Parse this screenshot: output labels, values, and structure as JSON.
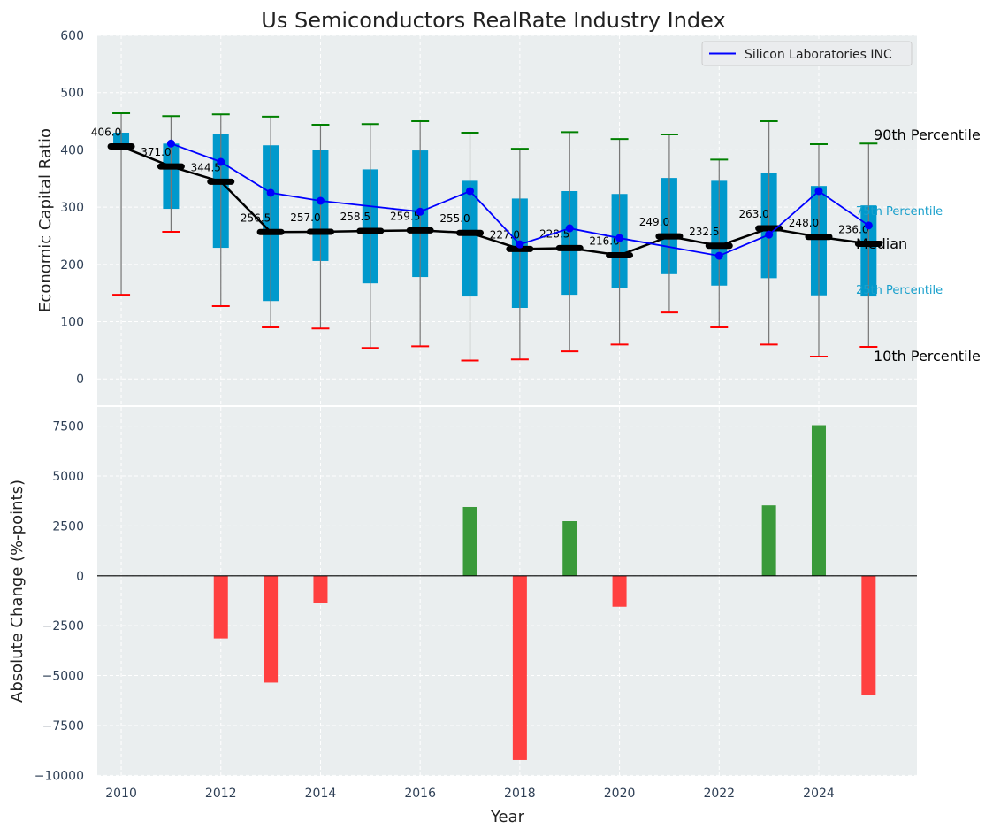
{
  "chart_data": [
    {
      "type": "box-percentile",
      "title": "Us Semiconductors RealRate Industry Index",
      "ylabel": "Economic Capital Ratio",
      "ylim": [
        -46,
        600
      ],
      "yticks": [
        0,
        100,
        200,
        300,
        400,
        500,
        600
      ],
      "grid": true,
      "legend": {
        "placement": "top-right",
        "entries": [
          "Silicon Laboratories INC"
        ]
      },
      "years": [
        2010,
        2011,
        2012,
        2013,
        2014,
        2015,
        2016,
        2017,
        2018,
        2019,
        2020,
        2021,
        2022,
        2023,
        2024,
        2025
      ],
      "p90": [
        464,
        459,
        462,
        458,
        444,
        445,
        450,
        430,
        402,
        431,
        419,
        427,
        383,
        450,
        410,
        411
      ],
      "p75": [
        430,
        411,
        427,
        408,
        400,
        366,
        399,
        346,
        315,
        328,
        323,
        351,
        346,
        359,
        337,
        303
      ],
      "median": [
        406.0,
        371.0,
        344.5,
        256.5,
        257.0,
        258.5,
        259.5,
        255.0,
        227.0,
        228.5,
        216.0,
        249.0,
        232.5,
        263.0,
        248.0,
        236.0
      ],
      "median_labels": [
        "406.0",
        "371.0",
        "344.5",
        "256.5",
        "257.0",
        "258.5",
        "259.5",
        "255.0",
        "227.0",
        "228.5",
        "216.0",
        "249.0",
        "232.5",
        "263.0",
        "248.0",
        "236.0"
      ],
      "p25": [
        406,
        297,
        229,
        136,
        206,
        167,
        178,
        144,
        124,
        147,
        158,
        183,
        163,
        176,
        146,
        144
      ],
      "p10": [
        147,
        257,
        127,
        90,
        88,
        54,
        57,
        32,
        34,
        48,
        60,
        116,
        90,
        60,
        39,
        56
      ],
      "series": [
        {
          "name": "Silicon Laboratories INC",
          "color": "#0000ff",
          "values": [
            null,
            411,
            379,
            325,
            311,
            null,
            292,
            328,
            235,
            263,
            246,
            null,
            215,
            252,
            328,
            268
          ]
        }
      ],
      "annotations": {
        "p90": "90th Percentile",
        "p75": "75th Percentile",
        "median": "Median",
        "p25": "25th Percentile",
        "p10": "10th Percentile"
      }
    },
    {
      "type": "bar",
      "xlabel": "Year",
      "ylabel": "Absolute Change (%-points)",
      "ylim": [
        -10030,
        8460
      ],
      "yticks": [
        -10000,
        -7500,
        -5000,
        -2500,
        0,
        2500,
        5000,
        7500
      ],
      "ytick_labels": [
        "−10000",
        "−7500",
        "−5000",
        "−2500",
        "0",
        "2500",
        "5000",
        "7500"
      ],
      "xlim": [
        2009.52,
        2025.97
      ],
      "xticks": [
        2010,
        2012,
        2014,
        2016,
        2018,
        2020,
        2022,
        2024
      ],
      "years": [
        2010,
        2011,
        2012,
        2013,
        2014,
        2015,
        2016,
        2017,
        2018,
        2019,
        2020,
        2021,
        2022,
        2023,
        2024,
        2025
      ],
      "values": [
        0,
        0,
        -3140,
        -5350,
        -1370,
        0,
        0,
        3450,
        -9230,
        2740,
        -1550,
        0,
        0,
        3530,
        7550,
        -5960
      ],
      "colors": {
        "positive": "#3a9a3a",
        "negative": "#ff4040"
      }
    }
  ]
}
